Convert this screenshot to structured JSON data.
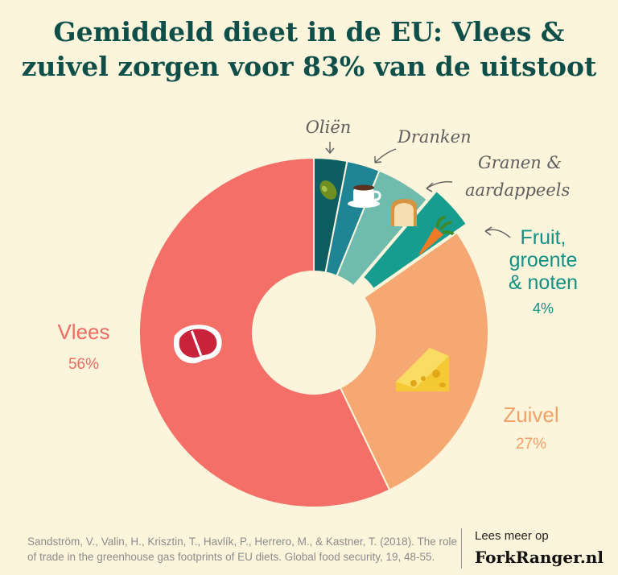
{
  "title_line1": "Gemiddeld dieet in de EU: Vlees &",
  "title_line2": "zuivel zorgen voor 83% van de uitstoot",
  "colors": {
    "background": "#fdf4dc",
    "title": "#0f4f4a"
  },
  "chart_data": {
    "type": "pie",
    "variant": "donut",
    "slices": [
      {
        "name": "Oliën",
        "pct_label": "",
        "value": 3,
        "color": "#0d5e63",
        "icon": "olive-icon"
      },
      {
        "name": "Dranken",
        "pct_label": "",
        "value": 3,
        "color": "#1f8493",
        "icon": "coffee-cup-icon"
      },
      {
        "name": "Granen & aardappeels",
        "pct_label": "",
        "value": 5,
        "color": "#6fbcaf",
        "icon": "bread-icon"
      },
      {
        "name": "Fruit, groente & noten",
        "pct_label": "4%",
        "value": 4,
        "color": "#169d8f",
        "icon": "carrot-icon",
        "exploded": true
      },
      {
        "name": "Zuivel",
        "pct_label": "27%",
        "value": 27,
        "color": "#f6a872",
        "icon": "cheese-icon"
      },
      {
        "name": "Vlees",
        "pct_label": "56%",
        "value": 56,
        "color": "#f46f68",
        "icon": "steak-icon"
      }
    ],
    "labels": {
      "olien": "Oliën",
      "dranken": "Dranken",
      "granen_1": "Granen &",
      "granen_2": "aardappeels",
      "fruit_1": "Fruit,",
      "fruit_2": "groente",
      "fruit_3": "& noten",
      "fruit_pct": "4%",
      "zuivel": "Zuivel",
      "zuivel_pct": "27%",
      "vlees": "Vlees",
      "vlees_pct": "56%"
    }
  },
  "footer": {
    "source_line1": "Sandström, V., Valin, H., Krisztin, T., Havlík, P., Herrero, M., & Kastner, T. (2018). The role",
    "source_line2": "of trade in the greenhouse gas footprints of EU diets. Global food security, 19, 48-55.",
    "read_more": "Lees meer op",
    "brand": "ForkRanger.nl"
  }
}
